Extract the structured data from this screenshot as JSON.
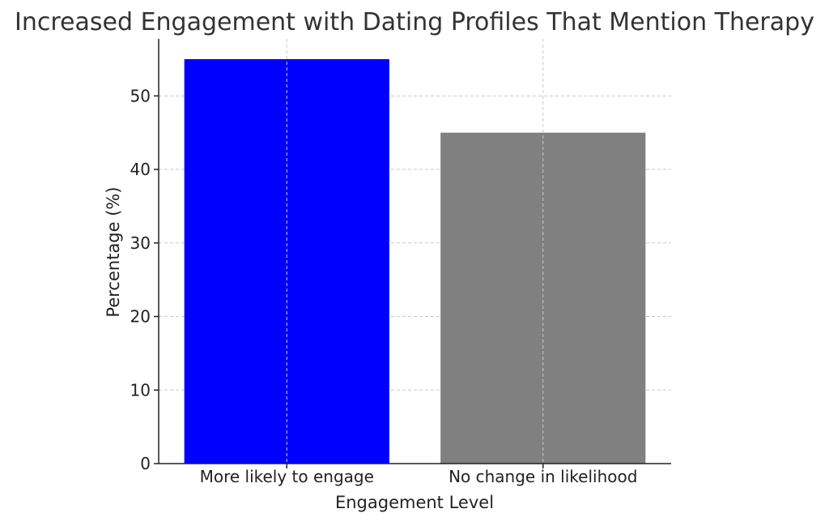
{
  "chart_data": {
    "type": "bar",
    "title": "Increased Engagement with Dating Profiles That Mention Therapy",
    "xlabel": "Engagement Level",
    "ylabel": "Percentage (%)",
    "categories": [
      "More likely to engage",
      "No change in likelihood"
    ],
    "values": [
      55,
      45
    ],
    "colors": [
      "#0000ff",
      "#808080"
    ],
    "ylim": [
      0,
      57.75
    ],
    "yticks": [
      0,
      10,
      20,
      30,
      40,
      50
    ],
    "grid": true,
    "legend": "none"
  }
}
